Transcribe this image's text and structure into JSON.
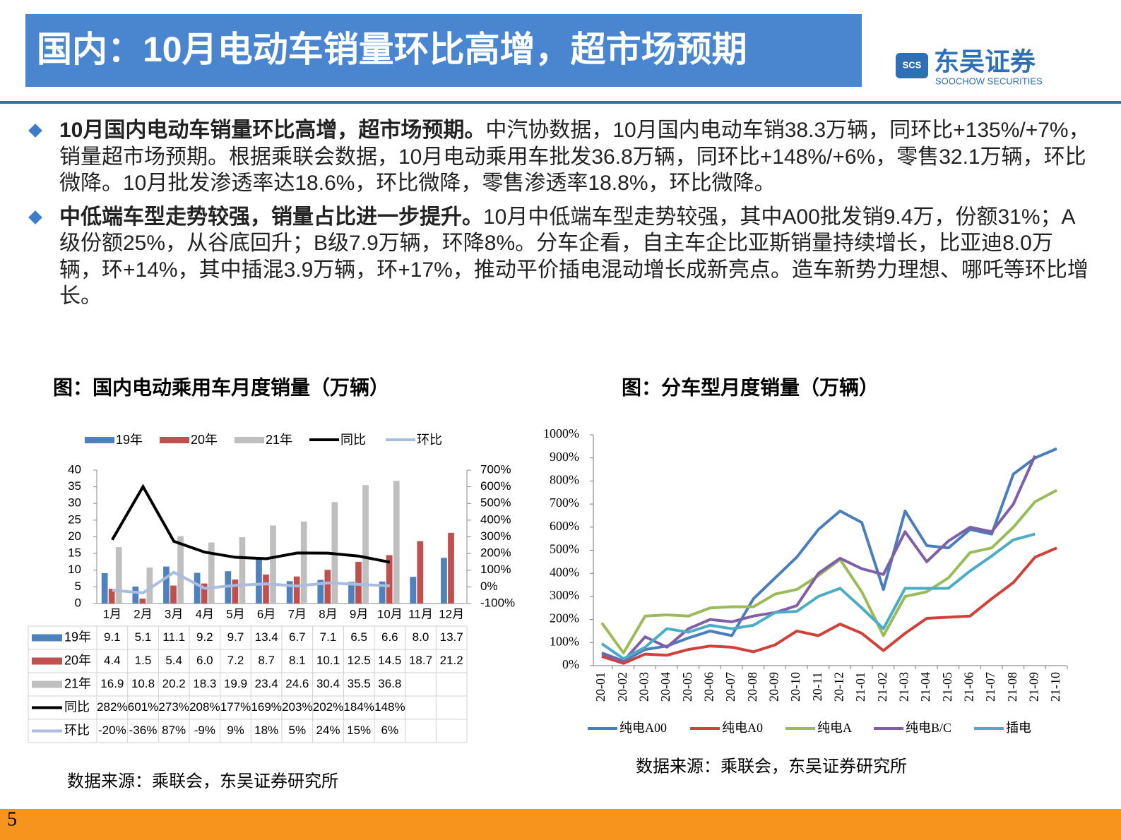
{
  "header": {
    "title": "国内：10月电动车销量环比高增，超市场预期",
    "logo_name": "东吴证券",
    "logo_abbr": "SCS",
    "logo_en": "SOOCHOW SECURITIES"
  },
  "bullets": [
    {
      "lead": "10月国内电动车销量环比高增，超市场预期。",
      "text": "中汽协数据，10月国内电动车销38.3万辆，同环比+135%/+7%，销量超市场预期。根据乘联会数据，10月电动乘用车批发36.8万辆，同环比+148%/+6%，零售32.1万辆，环比微降。10月批发渗透率达18.6%，环比微降，零售渗透率18.8%，环比微降。"
    },
    {
      "lead": "中低端车型走势较强，销量占比进一步提升。",
      "text": "10月中低端车型走势较强，其中A00批发销9.4万，份额31%；A级份额25%，从谷底回升；B级7.9万辆，环降8%。分车企看，自主车企比亚斯销量持续增长，比亚迪8.0万辆，环+14%，其中插混3.9万辆，环+17%，推动平价插电混动增长成新亮点。造车新势力理想、哪吒等环比增长。"
    }
  ],
  "chart_data": [
    {
      "type": "bar",
      "title": "图：国内电动乘用车月度销量（万辆）",
      "source": "数据来源：乘联会，东吴证券研究所",
      "categories": [
        "1月",
        "2月",
        "3月",
        "4月",
        "5月",
        "6月",
        "7月",
        "8月",
        "9月",
        "10月",
        "11月",
        "12月"
      ],
      "series": [
        {
          "name": "19年",
          "color": "#4f81bd",
          "values": [
            9.1,
            5.1,
            11.1,
            9.2,
            9.7,
            13.4,
            6.7,
            7.1,
            6.5,
            6.6,
            8.0,
            13.7
          ],
          "value_labels": [
            "9.1",
            "5.1",
            "11.1",
            "9.2",
            "9.7",
            "13.4",
            "6.7",
            "7.1",
            "6.5",
            "6.6",
            "8.0",
            "13.7"
          ]
        },
        {
          "name": "20年",
          "color": "#c0504d",
          "values": [
            4.4,
            1.5,
            5.4,
            6.0,
            7.2,
            8.7,
            8.1,
            10.1,
            12.5,
            14.5,
            18.7,
            21.2
          ],
          "value_labels": [
            "4.4",
            "1.5",
            "5.4",
            "6.0",
            "7.2",
            "8.7",
            "8.1",
            "10.1",
            "12.5",
            "14.5",
            "18.7",
            "21.2"
          ]
        },
        {
          "name": "21年",
          "color": "#bfbfbf",
          "values": [
            16.9,
            10.8,
            20.2,
            18.3,
            19.9,
            23.4,
            24.6,
            30.4,
            35.5,
            36.8,
            null,
            null
          ]
        },
        {
          "name": "同比",
          "color": "#000000",
          "type": "line",
          "axis": "y2",
          "values": [
            282,
            601,
            273,
            208,
            177,
            169,
            203,
            202,
            184,
            148,
            null,
            null
          ],
          "value_labels": [
            "282%",
            "601%",
            "273%",
            "208%",
            "177%",
            "169%",
            "203%",
            "202%",
            "184%",
            "148%",
            null,
            null
          ]
        },
        {
          "name": "环比",
          "color": "#a9bde0",
          "type": "line",
          "axis": "y2",
          "values": [
            -20,
            -36,
            87,
            -9,
            9,
            18,
            5,
            24,
            15,
            6,
            null,
            null
          ],
          "value_labels": [
            "-20%",
            "-36%",
            "87%",
            "-9%",
            "9%",
            "18%",
            "5%",
            "24%",
            "15%",
            "6%",
            null,
            null
          ]
        }
      ],
      "ylim": [
        0,
        40
      ],
      "yticks": [
        0,
        5,
        10,
        15,
        20,
        25,
        30,
        35,
        40
      ],
      "y2lim": [
        -100,
        700
      ],
      "y2ticks": [
        {
          "value": -100,
          "label": "-100%"
        },
        {
          "value": 0,
          "label": "0%"
        },
        {
          "value": 100,
          "label": "100%"
        },
        {
          "value": 200,
          "label": "200%"
        },
        {
          "value": 300,
          "label": "300%"
        },
        {
          "value": 400,
          "label": "400%"
        },
        {
          "value": 500,
          "label": "500%"
        },
        {
          "value": 600,
          "label": "600%"
        },
        {
          "value": 700,
          "label": "700%"
        }
      ],
      "legend": "top",
      "data_table": true
    },
    {
      "type": "line",
      "title": "图：分车型月度销量（万辆）",
      "source": "数据来源：乘联会，东吴证券研究所",
      "categories": [
        "20-01",
        "20-02",
        "20-03",
        "20-04",
        "20-05",
        "20-06",
        "20-07",
        "20-08",
        "20-09",
        "20-10",
        "20-11",
        "20-12",
        "21-01",
        "21-02",
        "21-03",
        "21-04",
        "21-05",
        "21-06",
        "21-07",
        "21-08",
        "21-09",
        "21-10"
      ],
      "series": [
        {
          "name": "纯电A00",
          "color": "#4a7ebb",
          "values": [
            55,
            20,
            70,
            85,
            120,
            150,
            130,
            290,
            380,
            470,
            590,
            670,
            620,
            330,
            670,
            520,
            510,
            590,
            570,
            830,
            900,
            940
          ]
        },
        {
          "name": "纯电A0",
          "color": "#d0413a",
          "values": [
            40,
            10,
            50,
            45,
            70,
            85,
            80,
            60,
            90,
            150,
            130,
            180,
            140,
            65,
            140,
            205,
            210,
            215,
            290,
            360,
            470,
            510
          ]
        },
        {
          "name": "纯电A",
          "color": "#9bbb59",
          "values": [
            185,
            55,
            215,
            220,
            215,
            250,
            255,
            255,
            310,
            330,
            390,
            460,
            320,
            130,
            300,
            320,
            380,
            490,
            510,
            600,
            710,
            760
          ]
        },
        {
          "name": "纯电B/C",
          "color": "#7f5fa8",
          "values": [
            50,
            20,
            125,
            80,
            160,
            200,
            190,
            215,
            230,
            260,
            400,
            465,
            420,
            395,
            580,
            450,
            540,
            600,
            580,
            700,
            910,
            null
          ]
        },
        {
          "name": "插电",
          "color": "#4bacc6",
          "values": [
            95,
            30,
            80,
            160,
            145,
            175,
            160,
            175,
            230,
            235,
            300,
            335,
            250,
            160,
            335,
            335,
            335,
            410,
            475,
            545,
            570,
            null
          ]
        }
      ],
      "ylim": [
        0,
        1000
      ],
      "yticks": [
        {
          "value": 0,
          "label": "0%"
        },
        {
          "value": 100,
          "label": "100%"
        },
        {
          "value": 200,
          "label": "200%"
        },
        {
          "value": 300,
          "label": "300%"
        },
        {
          "value": 400,
          "label": "400%"
        },
        {
          "value": 500,
          "label": "500%"
        },
        {
          "value": 600,
          "label": "600%"
        },
        {
          "value": 700,
          "label": "700%"
        },
        {
          "value": 800,
          "label": "800%"
        },
        {
          "value": 900,
          "label": "900%"
        },
        {
          "value": 1000,
          "label": "1000%"
        }
      ],
      "legend": "bottom"
    }
  ],
  "footer": {
    "page": "5"
  }
}
